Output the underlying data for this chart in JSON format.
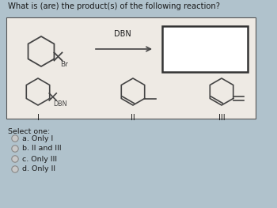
{
  "title": "What is (are) the product(s) of the following reaction?",
  "bg_color": "#b0c2cc",
  "panel_color": "#eeeae4",
  "panel_border": "#555555",
  "result_box_color": "#ffffff",
  "result_box_border": "#333333",
  "choices": [
    "a. Only I",
    "b. II and III",
    "c. Only III",
    "d. Only II"
  ],
  "select_label": "Select one:",
  "reagent": "DBN",
  "label_I": "I",
  "label_II": "II",
  "label_III": "III",
  "label_Br": "Br",
  "label_DBN_sub": "DBN",
  "title_fontsize": 7.2,
  "body_fontsize": 6.8,
  "choice_fontsize": 6.8,
  "mol_color": "#444444"
}
